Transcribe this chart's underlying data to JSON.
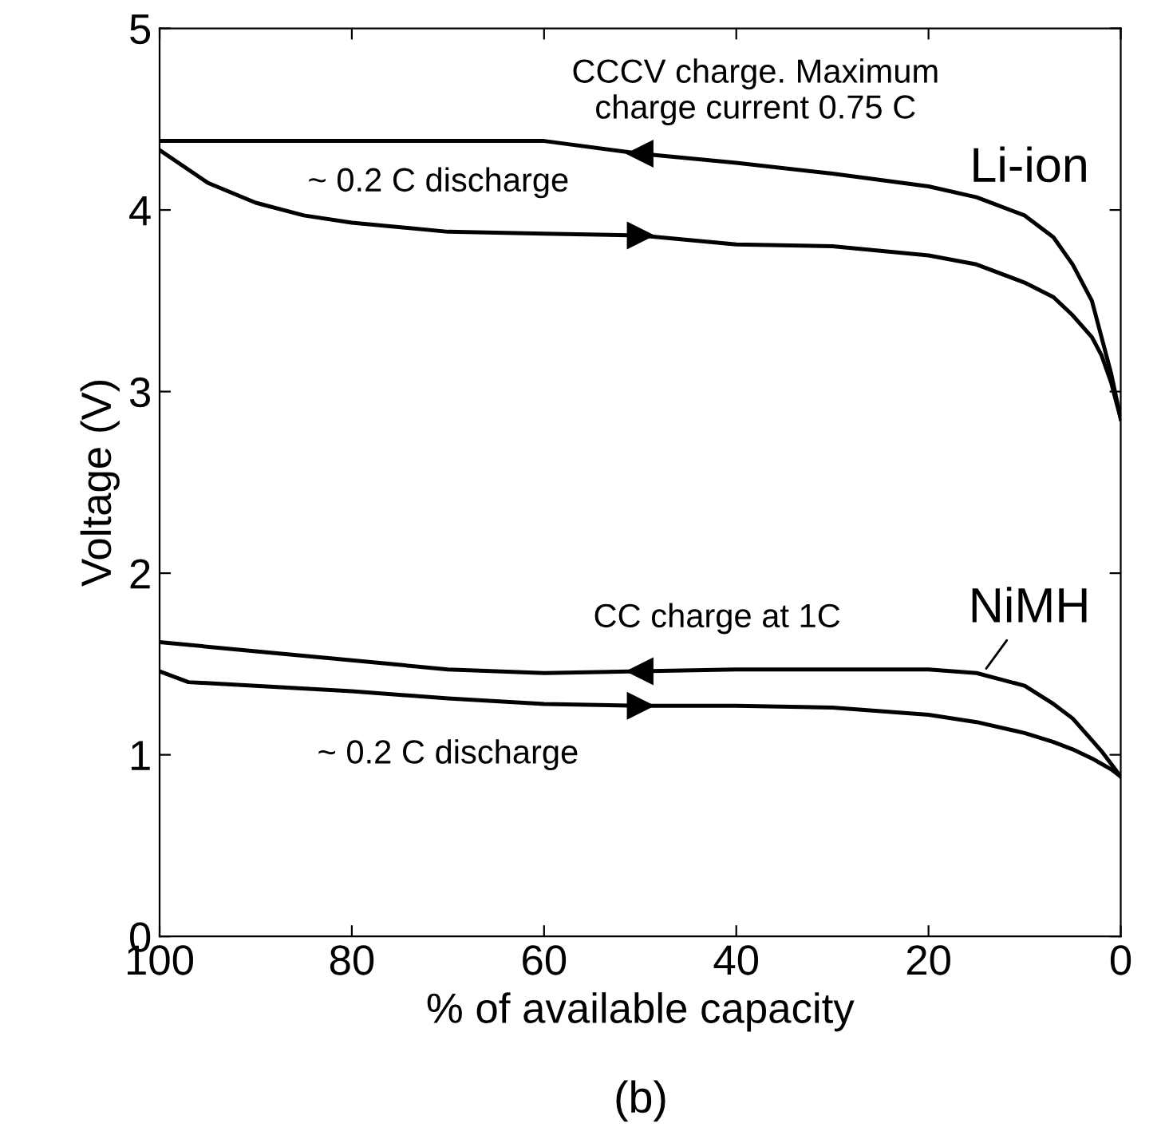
{
  "chart_data": {
    "type": "line",
    "xlabel": "% of available capacity",
    "ylabel": "Voltage (V)",
    "xlim": [
      100,
      0
    ],
    "ylim": [
      0,
      5
    ],
    "xticks": [
      100,
      80,
      60,
      40,
      20,
      0
    ],
    "yticks": [
      0,
      1,
      2,
      3,
      4,
      5
    ],
    "grid": false,
    "legend": false,
    "marker": "none",
    "line_style": "solid",
    "series": [
      {
        "color": "#000000",
        "x": [
          100,
          90,
          80,
          70,
          60,
          50,
          40,
          30,
          20,
          15,
          10,
          7,
          5,
          3,
          2,
          1,
          0
        ],
        "values": [
          4.38,
          4.38,
          4.38,
          4.38,
          4.38,
          4.31,
          4.26,
          4.2,
          4.13,
          4.07,
          3.97,
          3.85,
          3.7,
          3.5,
          3.3,
          3.1,
          2.85
        ]
      },
      {
        "color": "#000000",
        "x": [
          100,
          95,
          90,
          85,
          80,
          70,
          60,
          50,
          40,
          30,
          20,
          15,
          10,
          7,
          5,
          3,
          2,
          1,
          0
        ],
        "values": [
          4.33,
          4.15,
          4.04,
          3.97,
          3.93,
          3.88,
          3.87,
          3.86,
          3.81,
          3.8,
          3.75,
          3.7,
          3.6,
          3.52,
          3.42,
          3.3,
          3.2,
          3.05,
          2.85
        ]
      },
      {
        "color": "#000000",
        "x": [
          100,
          90,
          80,
          70,
          60,
          50,
          40,
          30,
          20,
          15,
          10,
          7,
          5,
          3,
          2,
          1,
          0
        ],
        "values": [
          1.62,
          1.57,
          1.52,
          1.47,
          1.45,
          1.46,
          1.47,
          1.47,
          1.47,
          1.45,
          1.38,
          1.28,
          1.2,
          1.08,
          1.02,
          0.95,
          0.88
        ]
      },
      {
        "color": "#000000",
        "x": [
          100,
          97,
          90,
          80,
          70,
          60,
          50,
          40,
          30,
          20,
          15,
          10,
          7,
          5,
          3,
          2,
          1,
          0
        ],
        "values": [
          1.46,
          1.4,
          1.38,
          1.35,
          1.31,
          1.28,
          1.27,
          1.27,
          1.26,
          1.22,
          1.18,
          1.12,
          1.07,
          1.03,
          0.98,
          0.95,
          0.92,
          0.88
        ]
      }
    ],
    "annotations": [
      "CCCV charge. Maximum\ncharge current 0.75 C",
      "Li-ion",
      "~ 0.2 C discharge",
      "NiMH",
      "CC charge at 1C",
      "~ 0.2 C discharge",
      "(b)"
    ]
  }
}
